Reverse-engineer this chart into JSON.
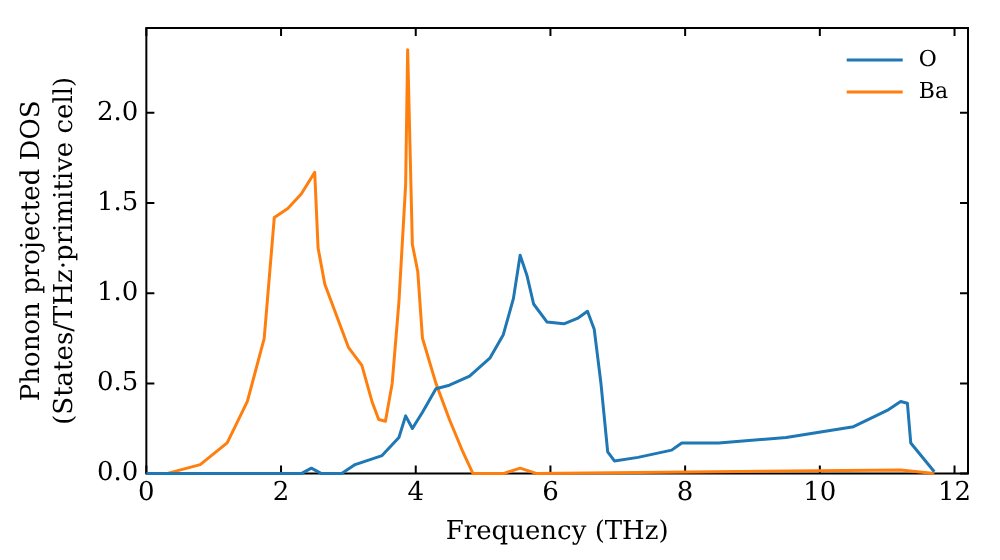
{
  "chart_data": {
    "type": "line",
    "xlabel": "Frequency (THz)",
    "ylabel": "Phonon projected DOS\n(States/THz·primitive cell)",
    "xlim": [
      0,
      12.2
    ],
    "ylim": [
      0,
      2.47
    ],
    "xticks": [
      0,
      2,
      4,
      6,
      8,
      10,
      12
    ],
    "yticks": [
      {
        "value": 0,
        "label": "0.0"
      },
      {
        "value": 0.5,
        "label": "0.5"
      },
      {
        "value": 1,
        "label": "1.0"
      },
      {
        "value": 1.5,
        "label": "1.5"
      },
      {
        "value": 2,
        "label": "2.0"
      }
    ],
    "grid": false,
    "legend": "top right",
    "marker": "none",
    "line_style": "solid",
    "series": [
      {
        "name": "O",
        "color": "#1f77b4",
        "x": [
          0,
          2.3,
          2.45,
          2.6,
          2.9,
          3.1,
          3.5,
          3.75,
          3.85,
          3.95,
          4.1,
          4.3,
          4.5,
          4.8,
          5.1,
          5.3,
          5.45,
          5.55,
          5.65,
          5.75,
          5.95,
          6.2,
          6.4,
          6.55,
          6.65,
          6.75,
          6.85,
          6.95,
          7.3,
          7.8,
          7.95,
          8.5,
          9.5,
          10.5,
          11.0,
          11.2,
          11.3,
          11.35,
          11.7
        ],
        "values": [
          0,
          0,
          0.03,
          0,
          0,
          0.05,
          0.1,
          0.2,
          0.32,
          0.25,
          0.34,
          0.47,
          0.49,
          0.54,
          0.64,
          0.77,
          0.97,
          1.21,
          1.1,
          0.94,
          0.84,
          0.83,
          0.86,
          0.9,
          0.8,
          0.5,
          0.12,
          0.07,
          0.09,
          0.13,
          0.17,
          0.17,
          0.2,
          0.26,
          0.35,
          0.4,
          0.39,
          0.17,
          0.01
        ]
      },
      {
        "name": "Ba",
        "color": "#ff7f0e",
        "x": [
          0.3,
          0.8,
          1.2,
          1.5,
          1.75,
          1.9,
          2.1,
          2.3,
          2.5,
          2.55,
          2.65,
          2.9,
          3.0,
          3.2,
          3.35,
          3.45,
          3.55,
          3.65,
          3.75,
          3.85,
          3.88,
          3.95,
          4.03,
          4.1,
          4.3,
          4.5,
          4.7,
          4.85,
          5.3,
          5.55,
          5.8,
          11.2,
          11.7
        ],
        "values": [
          0,
          0.05,
          0.17,
          0.4,
          0.75,
          1.42,
          1.47,
          1.55,
          1.67,
          1.25,
          1.05,
          0.8,
          0.7,
          0.6,
          0.4,
          0.3,
          0.29,
          0.5,
          0.95,
          1.6,
          2.35,
          1.27,
          1.12,
          0.75,
          0.5,
          0.3,
          0.12,
          0,
          0,
          0.03,
          0,
          0.02,
          0
        ]
      }
    ]
  }
}
